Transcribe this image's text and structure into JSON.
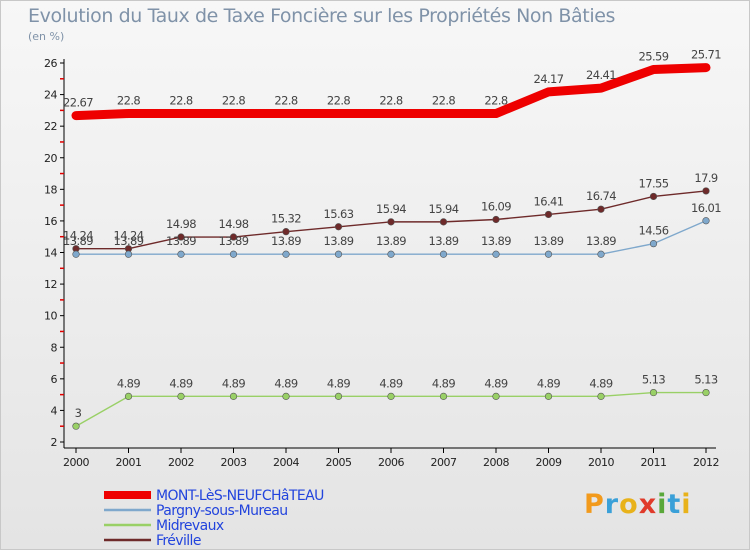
{
  "chart_data": {
    "type": "line",
    "title": "Evolution du Taux de Taxe Foncière sur les Propriétés Non Bâties",
    "unit_label": "(en %)",
    "x": [
      "2000",
      "2001",
      "2002",
      "2003",
      "2004",
      "2005",
      "2006",
      "2007",
      "2008",
      "2009",
      "2010",
      "2011",
      "2012"
    ],
    "ylim": [
      2,
      26
    ],
    "yticks": [
      2,
      4,
      6,
      8,
      10,
      12,
      14,
      16,
      18,
      20,
      22,
      24,
      26
    ],
    "series": [
      {
        "name": "Fréville",
        "color": "#6e2a2a",
        "values": [
          14.24,
          14.24,
          14.98,
          14.98,
          15.32,
          15.63,
          15.94,
          15.94,
          16.09,
          16.41,
          16.74,
          17.55,
          17.9
        ],
        "labels": [
          "14.24",
          "14.24",
          "14.98",
          "14.98",
          "15.32",
          "15.63",
          "15.94",
          "15.94",
          "16.09",
          "16.41",
          "16.74",
          "17.55",
          "17.9"
        ]
      },
      {
        "name": "Pargny-sous-Mureau",
        "color": "#7fa8cc",
        "values": [
          13.89,
          13.89,
          13.89,
          13.89,
          13.89,
          13.89,
          13.89,
          13.89,
          13.89,
          13.89,
          13.89,
          14.56,
          16.01
        ],
        "labels": [
          "13.89",
          "13.89",
          "13.89",
          "13.89",
          "13.89",
          "13.89",
          "13.89",
          "13.89",
          "13.89",
          "13.89",
          "13.89",
          "14.56",
          "16.01"
        ]
      },
      {
        "name": "Midrevaux",
        "color": "#99d066",
        "values": [
          3,
          4.89,
          4.89,
          4.89,
          4.89,
          4.89,
          4.89,
          4.89,
          4.89,
          4.89,
          4.89,
          5.13,
          5.13
        ],
        "labels": [
          "3",
          "4.89",
          "4.89",
          "4.89",
          "4.89",
          "4.89",
          "4.89",
          "4.89",
          "4.89",
          "4.89",
          "4.89",
          "5.13",
          "5.13"
        ]
      },
      {
        "name": "MONT-LèS-NEUFCHâTEAU",
        "color": "#ee0000",
        "values": [
          22.67,
          22.8,
          22.8,
          22.8,
          22.8,
          22.8,
          22.8,
          22.8,
          22.8,
          24.17,
          24.41,
          25.59,
          25.71
        ],
        "labels": [
          "22.67",
          "22.8",
          "22.8",
          "22.8",
          "22.8",
          "22.8",
          "22.8",
          "22.8",
          "22.8",
          "24.17",
          "24.41",
          "25.59",
          "25.71"
        ]
      }
    ],
    "legend": [
      "MONT-LèS-NEUFCHâTEAU",
      "Pargny-sous-Mureau",
      "Midrevaux",
      "Fréville"
    ],
    "legend_position": "bottom-left"
  },
  "logo": {
    "letters": [
      "P",
      "r",
      "o",
      "x",
      "i",
      "t",
      "i"
    ]
  }
}
